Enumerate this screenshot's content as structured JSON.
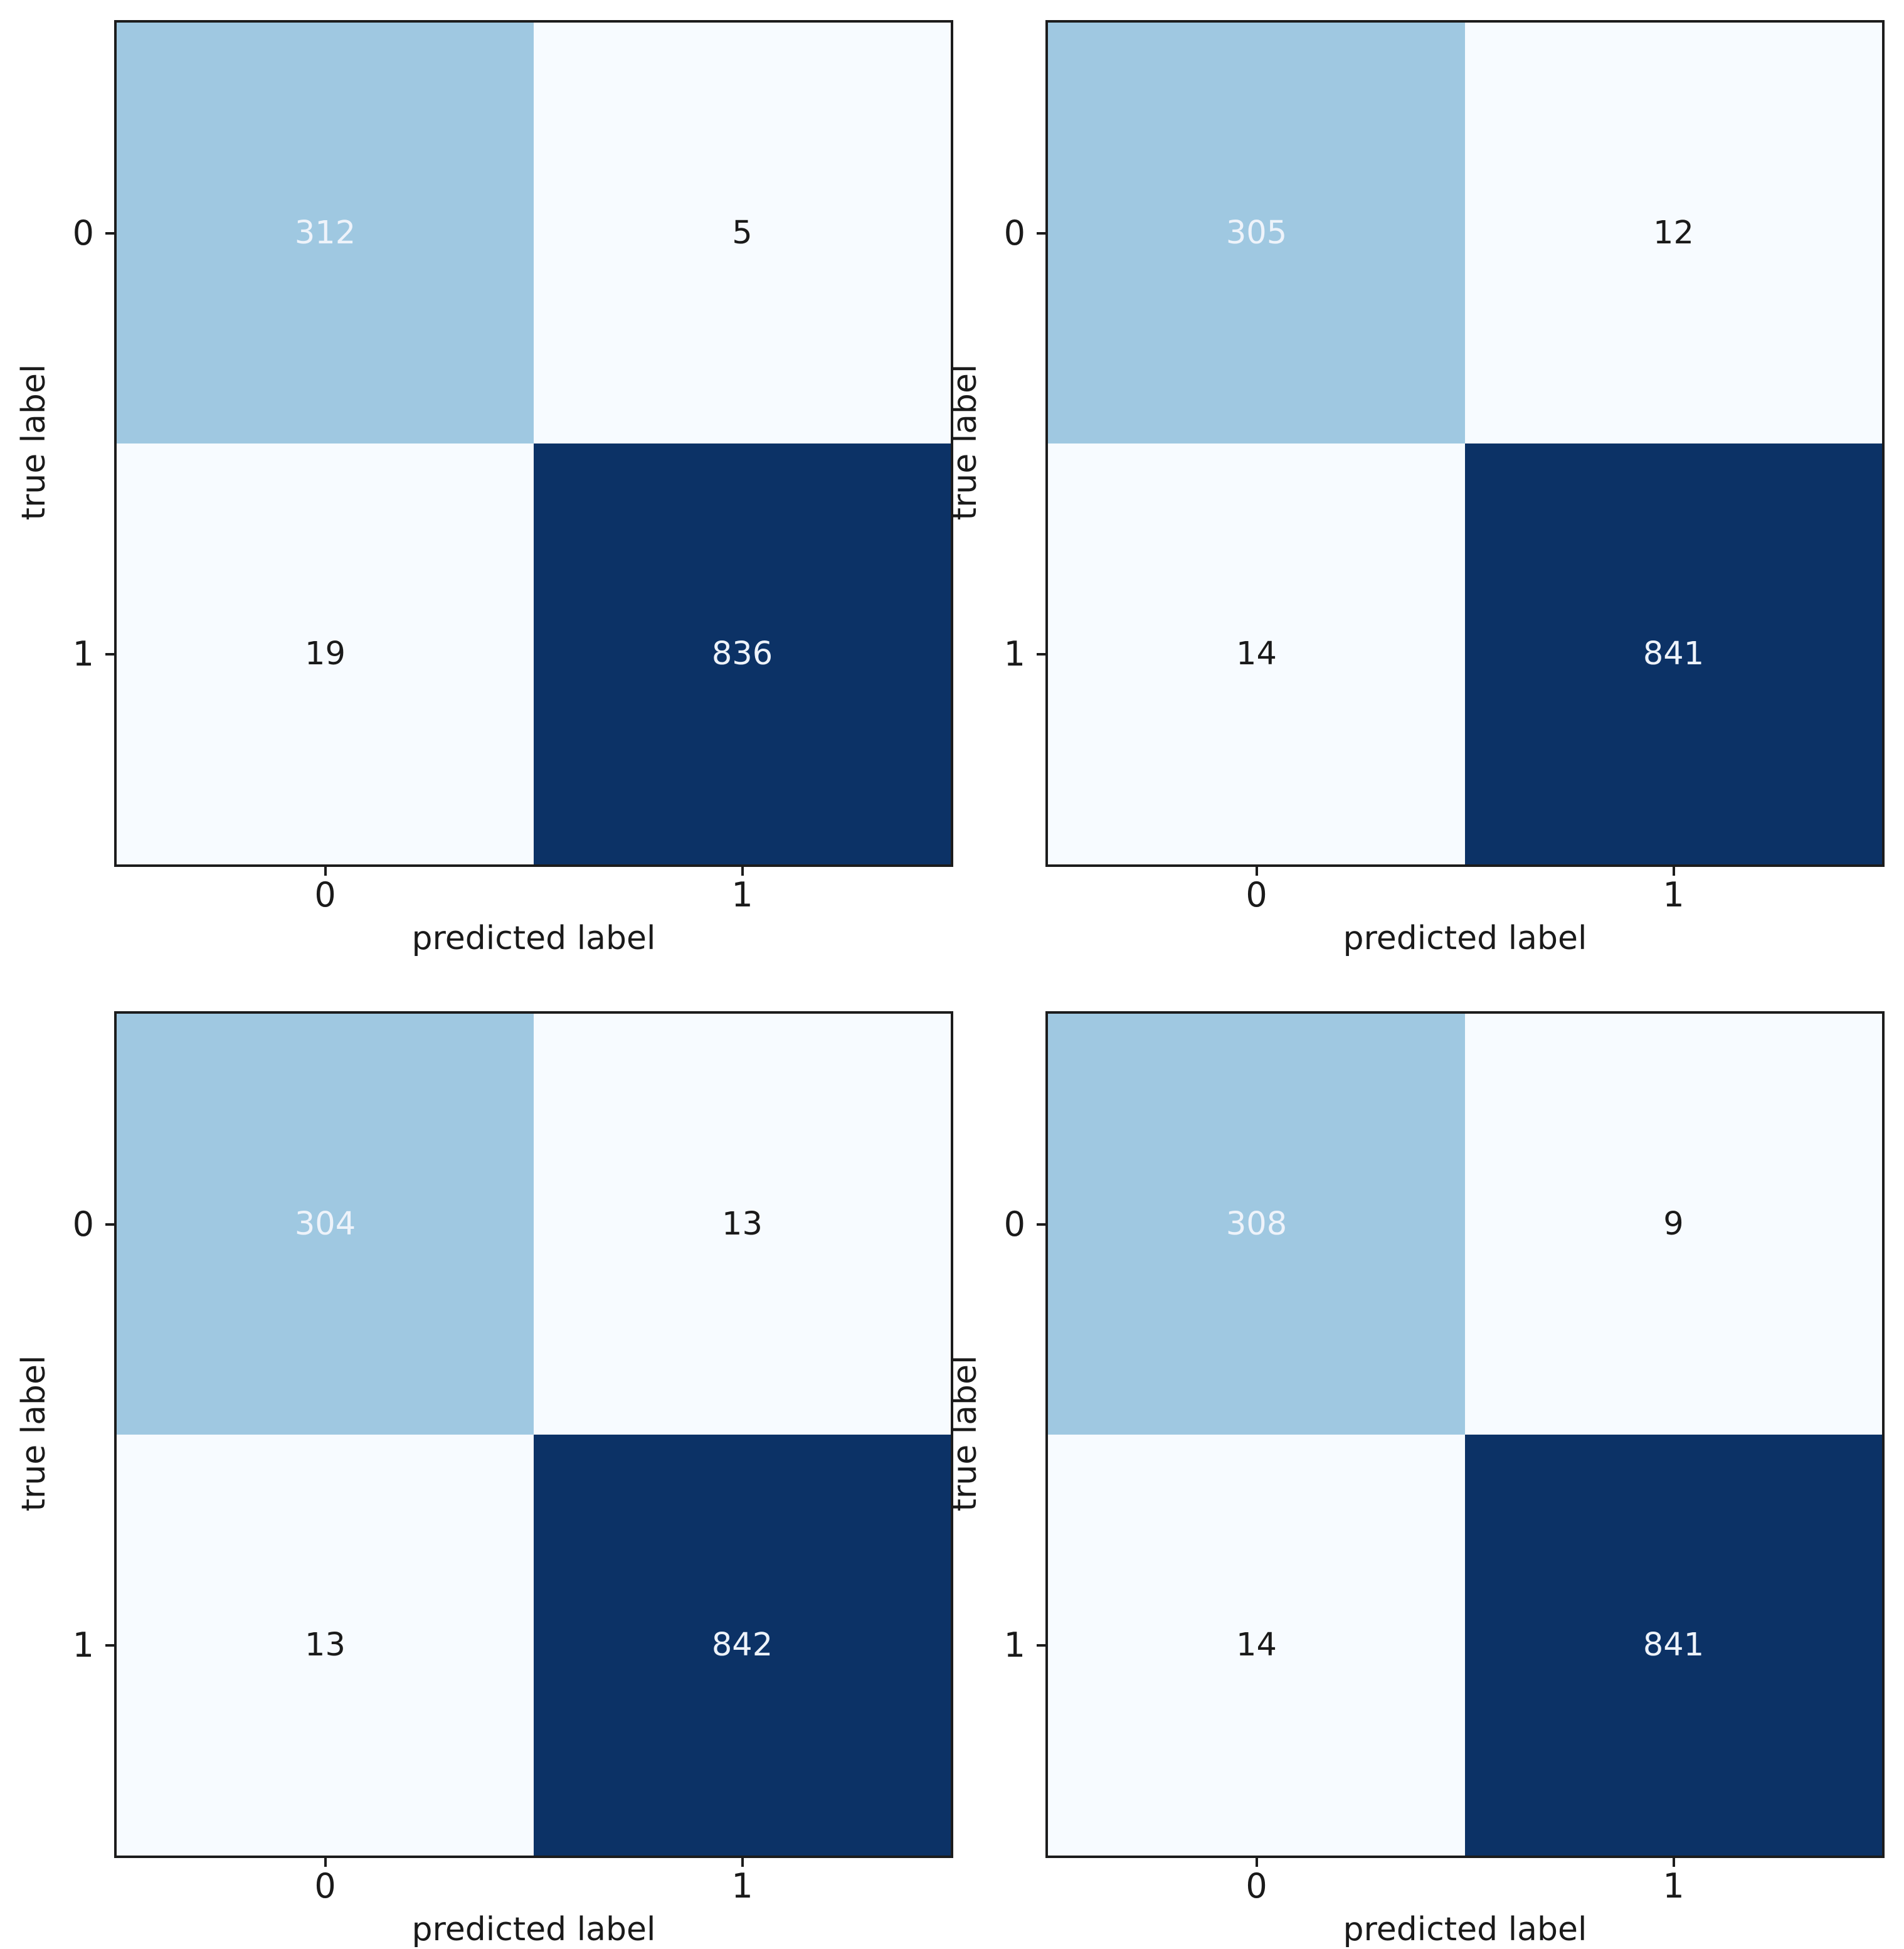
{
  "figure": {
    "kind": "confusion-matrix-grid",
    "rows": 2,
    "cols": 2
  },
  "palette": {
    "background": "#ffffff",
    "spine": "#1c1c1c",
    "tick": "#1c1c1c",
    "label_text": "#1a1a1a",
    "cell_medium_blue": "#9fc8e1",
    "cell_lightest": "#f7fbff",
    "cell_dark_navy": "#0c3266",
    "text_on_dark": "#eef3fa",
    "text_on_light": "#1a1a1a"
  },
  "chart_data": [
    {
      "type": "heatmap",
      "position": "top-left",
      "xlabel": "predicted label",
      "ylabel": "true label",
      "x_ticks": [
        "0",
        "1"
      ],
      "y_ticks": [
        "0",
        "1"
      ],
      "values": [
        [
          312,
          5
        ],
        [
          19,
          836
        ]
      ],
      "cell_tones": [
        [
          "medium-blue",
          "lightest"
        ],
        [
          "lightest",
          "dark-navy"
        ]
      ],
      "colormap": "Blues"
    },
    {
      "type": "heatmap",
      "position": "top-right",
      "xlabel": "predicted label",
      "ylabel": "true label",
      "x_ticks": [
        "0",
        "1"
      ],
      "y_ticks": [
        "0",
        "1"
      ],
      "values": [
        [
          305,
          12
        ],
        [
          14,
          841
        ]
      ],
      "cell_tones": [
        [
          "medium-blue",
          "lightest"
        ],
        [
          "lightest",
          "dark-navy"
        ]
      ],
      "colormap": "Blues"
    },
    {
      "type": "heatmap",
      "position": "bottom-left",
      "xlabel": "predicted label",
      "ylabel": "true label",
      "x_ticks": [
        "0",
        "1"
      ],
      "y_ticks": [
        "0",
        "1"
      ],
      "values": [
        [
          304,
          13
        ],
        [
          13,
          842
        ]
      ],
      "cell_tones": [
        [
          "medium-blue",
          "lightest"
        ],
        [
          "lightest",
          "dark-navy"
        ]
      ],
      "colormap": "Blues"
    },
    {
      "type": "heatmap",
      "position": "bottom-right",
      "xlabel": "predicted label",
      "ylabel": "true label",
      "x_ticks": [
        "0",
        "1"
      ],
      "y_ticks": [
        "0",
        "1"
      ],
      "values": [
        [
          308,
          9
        ],
        [
          14,
          841
        ]
      ],
      "cell_tones": [
        [
          "medium-blue",
          "lightest"
        ],
        [
          "lightest",
          "dark-navy"
        ]
      ],
      "colormap": "Blues"
    }
  ]
}
